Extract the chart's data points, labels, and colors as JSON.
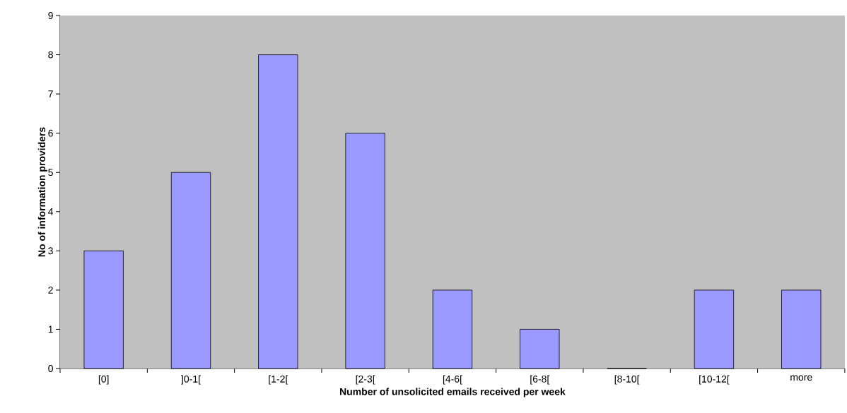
{
  "chart_data": {
    "type": "bar",
    "xlabel": "Number of unsolicited emails received per week",
    "ylabel": "No of information providers",
    "categories": [
      "[0]",
      "]0-1[",
      "[1-2[",
      "[2-3[",
      "[4-6[",
      "[6-8[",
      "[8-10[",
      "[10-12[",
      "more"
    ],
    "values": [
      3,
      5,
      8,
      6,
      2,
      1,
      0,
      2,
      2
    ],
    "color": "#9999ff",
    "ylim": [
      0,
      9
    ],
    "yticks": [
      0,
      1,
      2,
      3,
      4,
      5,
      6,
      7,
      8,
      9
    ]
  }
}
